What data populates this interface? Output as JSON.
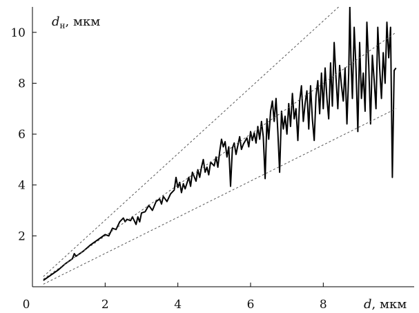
{
  "chart_data": {
    "type": "line",
    "title": "",
    "xlabel_var": "d",
    "xlabel_unit": ", мкм",
    "ylabel_var": "d",
    "ylabel_sub": "н",
    "ylabel_unit": ", мкм",
    "xlim": [
      0,
      10.5
    ],
    "ylim": [
      0,
      11
    ],
    "x_ticks": [
      0,
      2,
      4,
      6,
      8
    ],
    "x_tick_labels": [
      "0",
      "2",
      "4",
      "6",
      "8"
    ],
    "y_ticks": [
      2,
      4,
      6,
      8,
      10
    ],
    "y_tick_labels": [
      "2",
      "4",
      "6",
      "8",
      "10"
    ],
    "grid": false,
    "legend": "none",
    "series": [
      {
        "style": "solid",
        "color": "#000000",
        "points": [
          [
            0.3,
            0.25
          ],
          [
            0.5,
            0.45
          ],
          [
            0.7,
            0.65
          ],
          [
            0.9,
            0.9
          ],
          [
            1.1,
            1.1
          ],
          [
            1.15,
            1.3
          ],
          [
            1.2,
            1.2
          ],
          [
            1.4,
            1.4
          ],
          [
            1.6,
            1.65
          ],
          [
            1.8,
            1.85
          ],
          [
            2.0,
            2.05
          ],
          [
            2.1,
            2.0
          ],
          [
            2.2,
            2.3
          ],
          [
            2.3,
            2.25
          ],
          [
            2.4,
            2.55
          ],
          [
            2.5,
            2.7
          ],
          [
            2.55,
            2.55
          ],
          [
            2.6,
            2.65
          ],
          [
            2.7,
            2.6
          ],
          [
            2.75,
            2.75
          ],
          [
            2.8,
            2.6
          ],
          [
            2.85,
            2.45
          ],
          [
            2.9,
            2.75
          ],
          [
            2.95,
            2.55
          ],
          [
            3.0,
            2.9
          ],
          [
            3.1,
            2.95
          ],
          [
            3.2,
            3.2
          ],
          [
            3.3,
            3.0
          ],
          [
            3.4,
            3.35
          ],
          [
            3.5,
            3.45
          ],
          [
            3.55,
            3.25
          ],
          [
            3.6,
            3.55
          ],
          [
            3.7,
            3.35
          ],
          [
            3.8,
            3.65
          ],
          [
            3.9,
            3.8
          ],
          [
            3.95,
            4.3
          ],
          [
            4.0,
            3.9
          ],
          [
            4.05,
            4.1
          ],
          [
            4.1,
            3.7
          ],
          [
            4.15,
            4.05
          ],
          [
            4.2,
            3.85
          ],
          [
            4.3,
            4.3
          ],
          [
            4.35,
            3.95
          ],
          [
            4.4,
            4.5
          ],
          [
            4.5,
            4.15
          ],
          [
            4.55,
            4.6
          ],
          [
            4.6,
            4.3
          ],
          [
            4.65,
            4.7
          ],
          [
            4.7,
            5.0
          ],
          [
            4.75,
            4.5
          ],
          [
            4.8,
            4.7
          ],
          [
            4.85,
            4.4
          ],
          [
            4.9,
            4.9
          ],
          [
            5.0,
            4.75
          ],
          [
            5.05,
            5.1
          ],
          [
            5.1,
            4.7
          ],
          [
            5.15,
            5.3
          ],
          [
            5.2,
            5.8
          ],
          [
            5.25,
            5.5
          ],
          [
            5.3,
            5.7
          ],
          [
            5.35,
            5.1
          ],
          [
            5.4,
            5.5
          ],
          [
            5.45,
            3.95
          ],
          [
            5.5,
            5.45
          ],
          [
            5.55,
            5.65
          ],
          [
            5.6,
            5.2
          ],
          [
            5.7,
            5.9
          ],
          [
            5.75,
            5.4
          ],
          [
            5.8,
            5.6
          ],
          [
            5.9,
            5.85
          ],
          [
            5.95,
            5.5
          ],
          [
            6.0,
            6.1
          ],
          [
            6.05,
            5.75
          ],
          [
            6.1,
            6.05
          ],
          [
            6.15,
            5.65
          ],
          [
            6.2,
            6.3
          ],
          [
            6.25,
            5.8
          ],
          [
            6.3,
            6.5
          ],
          [
            6.35,
            5.9
          ],
          [
            6.4,
            4.25
          ],
          [
            6.45,
            6.6
          ],
          [
            6.5,
            5.8
          ],
          [
            6.55,
            6.9
          ],
          [
            6.6,
            7.3
          ],
          [
            6.65,
            6.5
          ],
          [
            6.7,
            7.4
          ],
          [
            6.75,
            6.1
          ],
          [
            6.8,
            4.5
          ],
          [
            6.85,
            6.9
          ],
          [
            6.9,
            6.2
          ],
          [
            6.95,
            6.7
          ],
          [
            7.0,
            6.0
          ],
          [
            7.05,
            7.2
          ],
          [
            7.1,
            6.3
          ],
          [
            7.15,
            7.6
          ],
          [
            7.2,
            6.6
          ],
          [
            7.25,
            7.0
          ],
          [
            7.3,
            5.75
          ],
          [
            7.35,
            7.3
          ],
          [
            7.4,
            7.9
          ],
          [
            7.45,
            6.5
          ],
          [
            7.5,
            7.2
          ],
          [
            7.55,
            7.7
          ],
          [
            7.6,
            6.2
          ],
          [
            7.65,
            7.9
          ],
          [
            7.7,
            6.6
          ],
          [
            7.75,
            5.75
          ],
          [
            7.8,
            7.5
          ],
          [
            7.85,
            8.1
          ],
          [
            7.9,
            6.8
          ],
          [
            7.95,
            8.4
          ],
          [
            8.0,
            7.0
          ],
          [
            8.05,
            8.6
          ],
          [
            8.1,
            7.4
          ],
          [
            8.15,
            6.6
          ],
          [
            8.2,
            8.8
          ],
          [
            8.25,
            7.1
          ],
          [
            8.3,
            9.6
          ],
          [
            8.35,
            8.2
          ],
          [
            8.4,
            7.0
          ],
          [
            8.45,
            8.7
          ],
          [
            8.5,
            7.9
          ],
          [
            8.55,
            7.3
          ],
          [
            8.6,
            8.6
          ],
          [
            8.65,
            6.4
          ],
          [
            8.7,
            8.4
          ],
          [
            8.73,
            11.0
          ],
          [
            8.76,
            9.0
          ],
          [
            8.8,
            7.4
          ],
          [
            8.85,
            10.2
          ],
          [
            8.9,
            8.6
          ],
          [
            8.95,
            6.1
          ],
          [
            9.0,
            9.6
          ],
          [
            9.05,
            7.4
          ],
          [
            9.1,
            8.4
          ],
          [
            9.15,
            6.9
          ],
          [
            9.2,
            10.4
          ],
          [
            9.25,
            8.7
          ],
          [
            9.3,
            6.4
          ],
          [
            9.35,
            9.1
          ],
          [
            9.4,
            8.1
          ],
          [
            9.45,
            7.0
          ],
          [
            9.5,
            10.2
          ],
          [
            9.55,
            8.6
          ],
          [
            9.6,
            7.4
          ],
          [
            9.65,
            9.2
          ],
          [
            9.7,
            8.0
          ],
          [
            9.75,
            10.4
          ],
          [
            9.8,
            9.0
          ],
          [
            9.85,
            10.2
          ],
          [
            9.9,
            4.3
          ],
          [
            9.95,
            8.5
          ],
          [
            10.0,
            8.6
          ]
        ]
      },
      {
        "style": "dashed",
        "color": "#555555",
        "points": [
          [
            0.3,
            0.4
          ],
          [
            8.5,
            11.1
          ]
        ]
      },
      {
        "style": "dashed",
        "color": "#555555",
        "points": [
          [
            0.3,
            0.3
          ],
          [
            10.0,
            10.0
          ]
        ]
      },
      {
        "style": "dashed",
        "color": "#555555",
        "points": [
          [
            0.3,
            0.1
          ],
          [
            10.0,
            7.0
          ]
        ]
      }
    ]
  }
}
